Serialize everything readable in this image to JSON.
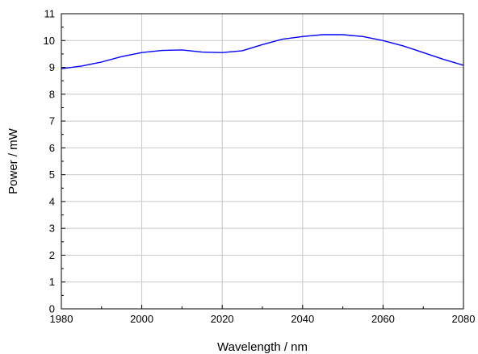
{
  "chart_data": {
    "type": "line",
    "xlabel": "Wavelength / nm",
    "ylabel": "Power / mW",
    "xlim": [
      1980,
      2080
    ],
    "ylim": [
      0,
      11
    ],
    "x_ticks": [
      "1980",
      "2000",
      "2020",
      "2040",
      "2060",
      "2080"
    ],
    "y_ticks": [
      "0",
      "1",
      "2",
      "3",
      "4",
      "5",
      "6",
      "7",
      "8",
      "9",
      "10",
      "11"
    ],
    "grid": true,
    "series": [
      {
        "color": "#0000ff",
        "x": [
          1980,
          1985,
          1990,
          1995,
          2000,
          2005,
          2010,
          2015,
          2020,
          2025,
          2030,
          2035,
          2040,
          2045,
          2050,
          2055,
          2060,
          2065,
          2070,
          2075,
          2080
        ],
        "y": [
          8.95,
          9.05,
          9.2,
          9.4,
          9.55,
          9.63,
          9.65,
          9.57,
          9.55,
          9.62,
          9.85,
          10.05,
          10.15,
          10.22,
          10.22,
          10.15,
          10.0,
          9.8,
          9.55,
          9.3,
          9.08
        ]
      }
    ]
  }
}
